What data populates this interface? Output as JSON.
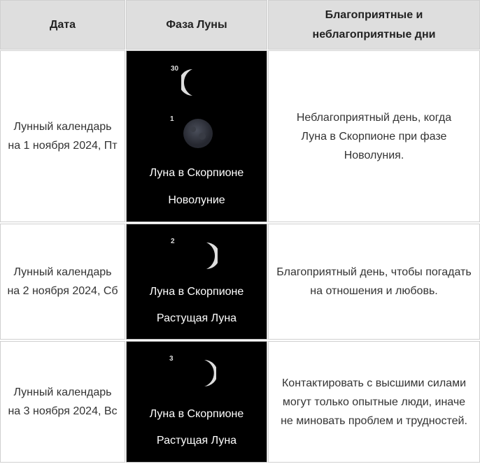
{
  "header": {
    "date": "Дата",
    "phase": "Фаза Луны",
    "days": "Благоприятные и неблагоприятные дни"
  },
  "rows": [
    {
      "date": "Лунный календарь на 1 ноября 2024, Пт",
      "moons": [
        {
          "day": "30",
          "icon": "waning-crescent-moon"
        },
        {
          "day": "1",
          "icon": "new-moon"
        }
      ],
      "sign": "Луна в Скорпионе",
      "phase": "Новолуние",
      "note": "Неблагоприятный день, когда Луна в Скорпионе при фазе Новолуния."
    },
    {
      "date": "Лунный календарь на 2 ноября 2024, Сб",
      "moons": [
        {
          "day": "2",
          "icon": "waxing-crescent-moon"
        }
      ],
      "sign": "Луна в Скорпионе",
      "phase": "Растущая Луна",
      "note": "Благоприятный день, чтобы погадать на отношения и любовь."
    },
    {
      "date": "Лунный календарь на 3 ноября 2024, Вс",
      "moons": [
        {
          "day": "3",
          "icon": "waxing-crescent-moon"
        }
      ],
      "sign": "Луна в Скорпионе",
      "phase": "Растущая Луна",
      "note": "Контактировать с высшими силами могут только опытные люди, иначе не миновать проблем и трудностей."
    }
  ]
}
